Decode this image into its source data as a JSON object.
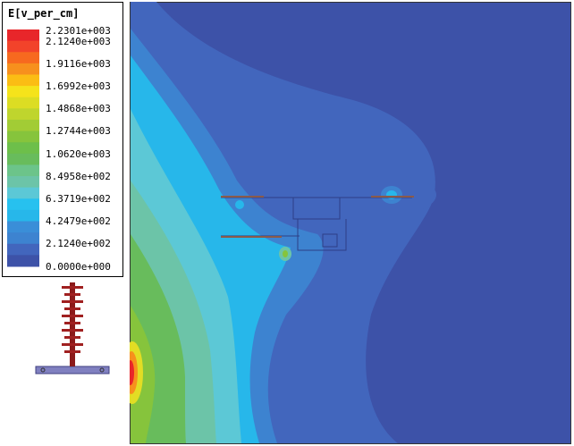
{
  "legend": {
    "title": "E[v_per_cm]",
    "labels": [
      "2.2301e+003",
      "2.1240e+003",
      "1.9116e+003",
      "1.6992e+003",
      "1.4868e+003",
      "1.2744e+003",
      "1.0620e+003",
      "8.4958e+002",
      "6.3719e+002",
      "4.2479e+002",
      "2.1240e+002",
      "0.0000e+000"
    ]
  }
}
